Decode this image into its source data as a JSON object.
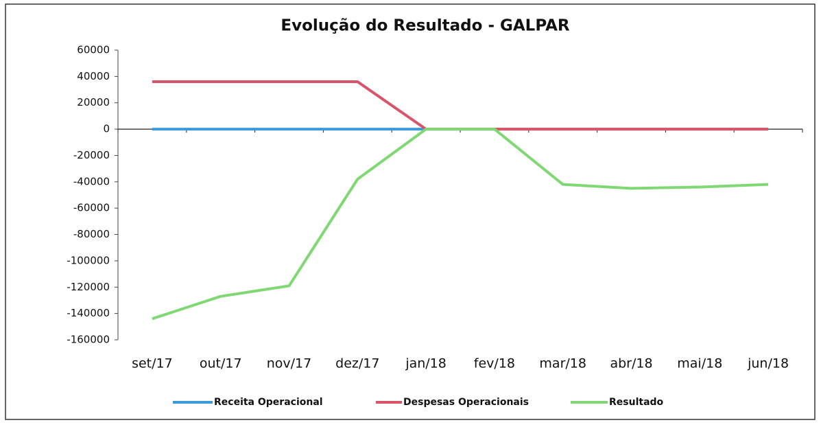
{
  "chart_data": {
    "type": "line",
    "title": "Evolução do Resultado - GALPAR",
    "categories": [
      "set/17",
      "out/17",
      "nov/17",
      "dez/17",
      "jan/18",
      "fev/18",
      "mar/18",
      "abr/18",
      "mai/18",
      "jun/18"
    ],
    "series": [
      {
        "name": "Receita Operacional",
        "color": "#3d9ad8",
        "values": [
          0,
          0,
          0,
          0,
          0,
          0,
          0,
          0,
          0,
          0
        ]
      },
      {
        "name": "Despesas Operacionais",
        "color": "#d95468",
        "values": [
          36000,
          36000,
          36000,
          36000,
          0,
          0,
          0,
          0,
          0,
          0
        ]
      },
      {
        "name": "Resultado",
        "color": "#80d874",
        "values": [
          -144000,
          -127000,
          -119000,
          -38000,
          0,
          0,
          -42000,
          -45000,
          -44000,
          -42000
        ]
      }
    ],
    "ylim": [
      -160000,
      60000
    ],
    "yticks": [
      -160000,
      -140000,
      -120000,
      -100000,
      -80000,
      -60000,
      -40000,
      -20000,
      0,
      20000,
      40000,
      60000
    ],
    "grid": false,
    "legend": "bottom"
  }
}
